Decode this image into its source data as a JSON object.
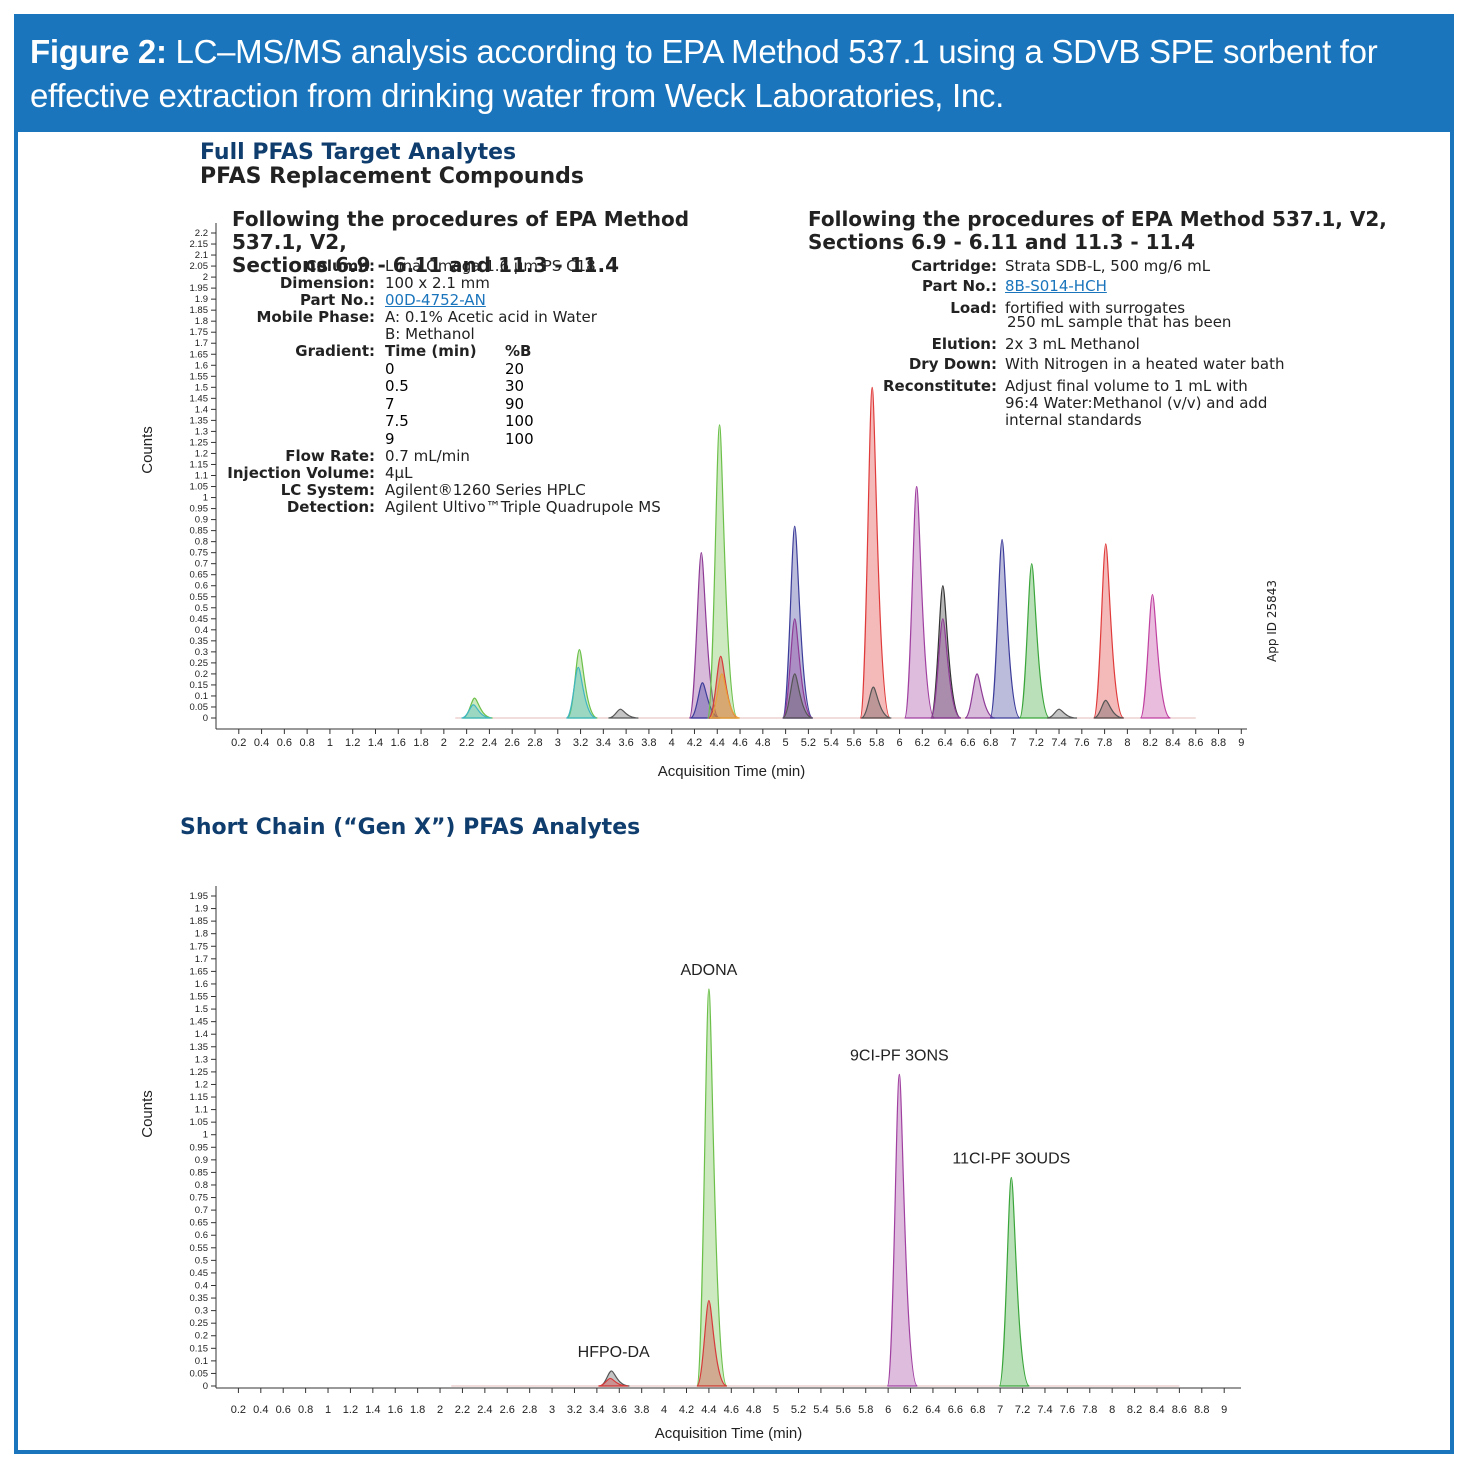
{
  "figure": {
    "label": "Figure 2:",
    "caption_line1": " LC–MS/MS analysis according to EPA Method 537.1 using a SDVB SPE sorbent for",
    "caption_line2": "effective extraction from drinking water from Weck Laboratories, Inc.",
    "color": "#1a75bc"
  },
  "section1": {
    "title": "Full PFAS Target Analytes",
    "subtitle": "PFAS Replacement Compounds"
  },
  "lc": {
    "heading1": "Following the procedures of EPA Method 537.1, V2,",
    "heading2": "Sections 6.9 - 6.11 and 11.3 - 11.4",
    "column_label": "Column:",
    "column": "Luna Omega 1.6 µm PS C18",
    "dimension_label": "Dimension:",
    "dimension": "100 x 2.1 mm",
    "partno_label": "Part No.:",
    "partno": "00D-4752-AN",
    "mobile_label": "Mobile Phase:",
    "mobile_a": "A: 0.1% Acetic acid in Water",
    "mobile_b": "B: Methanol",
    "gradient_label": "Gradient:",
    "gradient_col1": "Time (min)",
    "gradient_col2": "%B",
    "gradient": [
      [
        "0",
        "20"
      ],
      [
        "0.5",
        "30"
      ],
      [
        "7",
        "90"
      ],
      [
        "7.5",
        "100"
      ],
      [
        "9",
        "100"
      ]
    ],
    "flow_label": "Flow Rate:",
    "flow": "0.7 mL/min",
    "inj_label": "Injection Volume:",
    "inj": "4µL",
    "system_label": "LC System:",
    "system": "Agilent®1260 Series HPLC",
    "detection_label": "Detection:",
    "detection": "Agilent Ultivo™Triple Quadrupole MS"
  },
  "spe": {
    "heading1": "Following the procedures of EPA Method 537.1, V2,",
    "heading2": "Sections 6.9 - 6.11 and 11.3 - 11.4",
    "cartridge_label": "Cartridge:",
    "cartridge": "Strata SDB-L, 500 mg/6 mL",
    "partno_label": "Part No.:",
    "partno": "8B-S014-HCH",
    "load_label": "Load:",
    "load1": "fortified with surrogates",
    "load2": "250 mL sample that has been",
    "elution_label": "Elution:",
    "elution": "2x 3 mL Methanol",
    "drydown_label": "Dry Down:",
    "drydown": "With Nitrogen in a heated water bath",
    "reconstitute_label": "Reconstitute:",
    "reconstitute1": "Adjust final volume to 1 mL with",
    "reconstitute2": "96:4 Water:Methanol (v/v) and add",
    "reconstitute3": "internal standards"
  },
  "app_id": "App ID 25843",
  "section2": {
    "title": "Short Chain (“Gen X”) PFAS Analytes"
  },
  "chart_data": [
    {
      "type": "line",
      "xlabel": "Acquisition Time (min)",
      "ylabel": "Counts",
      "xlim": [
        0,
        9.05
      ],
      "ylim": [
        0,
        2.2
      ],
      "xticks": [
        "0.2",
        "0.4",
        "0.6",
        "0.8",
        "1",
        "1.2",
        "1.4",
        "1.6",
        "1.8",
        "2",
        "2.2",
        "2.4",
        "2.6",
        "2.8",
        "3",
        "3.2",
        "3.4",
        "3.6",
        "3.8",
        "4",
        "4.2",
        "4.4",
        "4.6",
        "4.8",
        "5",
        "5.2",
        "5.4",
        "5.6",
        "5.8",
        "6",
        "6.2",
        "6.4",
        "6.6",
        "6.8",
        "7",
        "7.2",
        "7.4",
        "7.6",
        "7.8",
        "8",
        "8.2",
        "8.4",
        "8.6",
        "8.8",
        "9"
      ],
      "yticks": [
        "0",
        "0.05",
        "0.1",
        "0.15",
        "0.2",
        "0.25",
        "0.3",
        "0.35",
        "0.4",
        "0.45",
        "0.5",
        "0.55",
        "0.6",
        "0.65",
        "0.7",
        "0.75",
        "0.8",
        "0.85",
        "0.9",
        "0.95",
        "1",
        "1.05",
        "1.1",
        "1.15",
        "1.2",
        "1.25",
        "1.3",
        "1.35",
        "1.4",
        "1.45",
        "1.5",
        "1.55",
        "1.6",
        "1.65",
        "1.7",
        "1.75",
        "1.8",
        "1.85",
        "1.9",
        "1.95",
        "2",
        "2.05",
        "2.1",
        "2.15",
        "2.2"
      ],
      "peaks": [
        {
          "x": 2.27,
          "y": 0.09,
          "color": "#6cc04a"
        },
        {
          "x": 2.26,
          "y": 0.06,
          "color": "#3fb6c2"
        },
        {
          "x": 3.19,
          "y": 0.31,
          "color": "#6cc04a"
        },
        {
          "x": 3.18,
          "y": 0.23,
          "color": "#3fb6c2"
        },
        {
          "x": 3.55,
          "y": 0.04,
          "color": "#555555"
        },
        {
          "x": 4.26,
          "y": 0.75,
          "color": "#8e3b96"
        },
        {
          "x": 4.27,
          "y": 0.16,
          "color": "#3c3c9a"
        },
        {
          "x": 4.42,
          "y": 1.33,
          "color": "#6cc04a"
        },
        {
          "x": 4.43,
          "y": 0.28,
          "color": "#d63a3a"
        },
        {
          "x": 4.44,
          "y": 0.2,
          "color": "#e8a23a"
        },
        {
          "x": 5.08,
          "y": 0.87,
          "color": "#3c3c9a"
        },
        {
          "x": 5.08,
          "y": 0.45,
          "color": "#8e3b96"
        },
        {
          "x": 5.08,
          "y": 0.2,
          "color": "#555555"
        },
        {
          "x": 5.76,
          "y": 1.5,
          "color": "#e03a3a"
        },
        {
          "x": 5.77,
          "y": 0.14,
          "color": "#555555"
        },
        {
          "x": 6.15,
          "y": 1.05,
          "color": "#a040a0"
        },
        {
          "x": 6.38,
          "y": 0.6,
          "color": "#333333"
        },
        {
          "x": 6.38,
          "y": 0.45,
          "color": "#8e3b96"
        },
        {
          "x": 6.68,
          "y": 0.2,
          "color": "#8e3b96"
        },
        {
          "x": 6.9,
          "y": 0.81,
          "color": "#3c3c9a"
        },
        {
          "x": 7.16,
          "y": 0.7,
          "color": "#3aa53a"
        },
        {
          "x": 7.4,
          "y": 0.04,
          "color": "#555555"
        },
        {
          "x": 7.81,
          "y": 0.79,
          "color": "#e03a3a"
        },
        {
          "x": 7.81,
          "y": 0.08,
          "color": "#555555"
        },
        {
          "x": 8.22,
          "y": 0.56,
          "color": "#c040a0"
        }
      ]
    },
    {
      "type": "line",
      "xlabel": "Acquisition Time (min)",
      "ylabel": "Counts",
      "xlim": [
        0,
        9.15
      ],
      "ylim": [
        0,
        1.95
      ],
      "xticks": [
        "0.2",
        "0.4",
        "0.6",
        "0.8",
        "1",
        "1.2",
        "1.4",
        "1.6",
        "1.8",
        "2",
        "2.2",
        "2.4",
        "2.6",
        "2.8",
        "3",
        "3.2",
        "3.4",
        "3.6",
        "3.8",
        "4",
        "4.2",
        "4.4",
        "4.6",
        "4.8",
        "5",
        "5.2",
        "5.4",
        "5.6",
        "5.8",
        "6",
        "6.2",
        "6.4",
        "6.6",
        "6.8",
        "7",
        "7.2",
        "7.4",
        "7.6",
        "7.8",
        "8",
        "8.2",
        "8.4",
        "8.6",
        "8.8",
        "9"
      ],
      "yticks": [
        "0",
        "0.05",
        "0.1",
        "0.15",
        "0.2",
        "0.25",
        "0.3",
        "0.35",
        "0.4",
        "0.45",
        "0.5",
        "0.55",
        "0.6",
        "0.65",
        "0.7",
        "0.75",
        "0.8",
        "0.85",
        "0.9",
        "0.95",
        "1",
        "1.05",
        "1.1",
        "1.15",
        "1.2",
        "1.25",
        "1.3",
        "1.35",
        "1.4",
        "1.45",
        "1.5",
        "1.55",
        "1.6",
        "1.65",
        "1.7",
        "1.75",
        "1.8",
        "1.85",
        "1.9",
        "1.95"
      ],
      "annotations": [
        {
          "text": "HFPO-DA",
          "x": 3.55,
          "y": 0.06
        },
        {
          "text": "ADONA",
          "x": 4.4,
          "y": 1.58
        },
        {
          "text": "9CI-PF 3ONS",
          "x": 6.1,
          "y": 1.24
        },
        {
          "text": "11CI-PF 3OUDS",
          "x": 7.1,
          "y": 0.83
        }
      ],
      "peaks": [
        {
          "x": 3.53,
          "y": 0.06,
          "color": "#555555"
        },
        {
          "x": 3.52,
          "y": 0.03,
          "color": "#d63a3a"
        },
        {
          "x": 4.4,
          "y": 1.58,
          "color": "#6cc04a"
        },
        {
          "x": 4.4,
          "y": 0.34,
          "color": "#d63a3a"
        },
        {
          "x": 6.1,
          "y": 1.24,
          "color": "#a040a0"
        },
        {
          "x": 7.1,
          "y": 0.83,
          "color": "#3aa53a"
        }
      ]
    }
  ]
}
